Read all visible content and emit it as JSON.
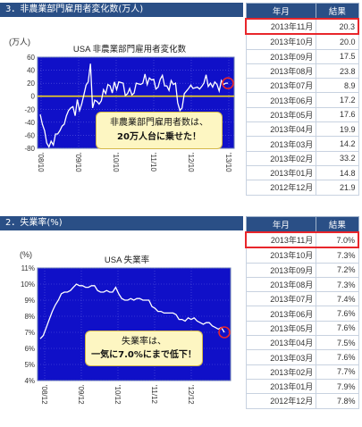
{
  "section1": {
    "header": "3．非農業部門雇用者変化数(万人)",
    "table": {
      "col_month": "年月",
      "col_result": "結果",
      "rows": [
        {
          "month": "2013年11月",
          "value": "20.3"
        },
        {
          "month": "2013年10月",
          "value": "20.0"
        },
        {
          "month": "2013年09月",
          "value": "17.5"
        },
        {
          "month": "2013年08月",
          "value": "23.8"
        },
        {
          "month": "2013年07月",
          "value": "8.9"
        },
        {
          "month": "2013年06月",
          "value": "17.2"
        },
        {
          "month": "2013年05月",
          "value": "17.6"
        },
        {
          "month": "2013年04月",
          "value": "19.9"
        },
        {
          "month": "2013年03月",
          "value": "14.2"
        },
        {
          "month": "2013年02月",
          "value": "33.2"
        },
        {
          "month": "2013年01月",
          "value": "14.8"
        },
        {
          "month": "2012年12月",
          "value": "21.9"
        }
      ]
    },
    "callout_line1": "非農業部門雇用者数は、",
    "callout_line2": "20万人台に乗せた！"
  },
  "section2": {
    "header": "2．失業率(%)",
    "table": {
      "col_month": "年月",
      "col_result": "結果",
      "rows": [
        {
          "month": "2013年11月",
          "value": "7.0%"
        },
        {
          "month": "2013年10月",
          "value": "7.3%"
        },
        {
          "month": "2013年09月",
          "value": "7.2%"
        },
        {
          "month": "2013年08月",
          "value": "7.3%"
        },
        {
          "month": "2013年07月",
          "value": "7.4%"
        },
        {
          "month": "2013年06月",
          "value": "7.6%"
        },
        {
          "month": "2013年05月",
          "value": "7.6%"
        },
        {
          "month": "2013年04月",
          "value": "7.5%"
        },
        {
          "month": "2013年03月",
          "value": "7.6%"
        },
        {
          "month": "2013年02月",
          "value": "7.7%"
        },
        {
          "month": "2013年01月",
          "value": "7.9%"
        },
        {
          "month": "2012年12月",
          "value": "7.8%"
        }
      ]
    },
    "callout_line1": "失業率は、",
    "callout_line2": "一気に7.0%にまで低下！"
  },
  "colors": {
    "header_bg": "#2a4f86",
    "plot_bg": "#1010c8",
    "line": "#ffffff",
    "zero_line": "#f0d020",
    "highlight_red": "#e8262b",
    "callout_bg": "#fdf6c2"
  },
  "chart_data": [
    {
      "type": "line",
      "title": "USA 非農業部門雇用者変化数",
      "ylabel": "(万人)",
      "ylim": [
        -80,
        60
      ],
      "yticks": [
        "60",
        "40",
        "20",
        "0",
        "-20",
        "-40",
        "-60",
        "-80"
      ],
      "xticks": [
        "'08/10",
        "'09/10",
        "'10/10",
        "'11/10",
        "'12/10",
        "'13/10"
      ],
      "grid": true,
      "x_start": "2008-08",
      "x_end": "2013-11",
      "series": [
        {
          "values": [
            -28,
            -43,
            -53,
            -72,
            -78,
            -69,
            -75,
            -58,
            -58,
            -53,
            -46,
            -43,
            -30,
            -22,
            -18,
            -16,
            -30,
            -5,
            -22,
            -12,
            2,
            17,
            22,
            50,
            -18,
            -6,
            -8,
            -12,
            -7,
            10,
            4,
            18,
            16,
            5,
            22,
            10,
            22,
            21,
            20,
            1,
            4,
            12,
            2,
            5,
            20,
            19,
            18,
            20,
            34,
            18,
            28,
            25,
            26,
            11,
            14,
            26,
            32,
            16,
            16,
            9,
            24,
            18,
            20
          ],
          "extra_values": [
            -10,
            -22,
            -18,
            4,
            8,
            12,
            17,
            12,
            13,
            14,
            11,
            15,
            20,
            33,
            15,
            20,
            14,
            22,
            18,
            8,
            24,
            18,
            20,
            20
          ]
        }
      ]
    },
    {
      "type": "line",
      "title": "USA 失業率",
      "ylabel": "(%)",
      "ylim": [
        4,
        11
      ],
      "yticks": [
        "11%",
        "10%",
        "9%",
        "8%",
        "7%",
        "6%",
        "5%",
        "4%"
      ],
      "xticks": [
        "'08/12",
        "'09/12",
        "'10/12",
        "'11/12",
        "'12/12"
      ],
      "grid": true,
      "x_start": "2008-10",
      "x_end": "2013-11",
      "series": [
        {
          "values": [
            6.6,
            6.8,
            7.3,
            7.8,
            8.3,
            8.7,
            9.0,
            9.4,
            9.5,
            9.5,
            9.6,
            9.8,
            10.0,
            9.9,
            9.9,
            9.8,
            9.8,
            9.9,
            9.9,
            9.6,
            9.5,
            9.5,
            9.6,
            9.5,
            9.5,
            9.8,
            9.4,
            9.1,
            9.0,
            9.0,
            9.1,
            9.0,
            9.1,
            9.1,
            9.0,
            9.0,
            9.0,
            8.6,
            8.5,
            8.3,
            8.3,
            8.2,
            8.2,
            8.2,
            8.2,
            8.1,
            7.8,
            7.8,
            7.7,
            7.9,
            7.8,
            7.9,
            7.7,
            7.6,
            7.5,
            7.6,
            7.6,
            7.4,
            7.3,
            7.2,
            7.3,
            7.0
          ]
        }
      ]
    }
  ]
}
